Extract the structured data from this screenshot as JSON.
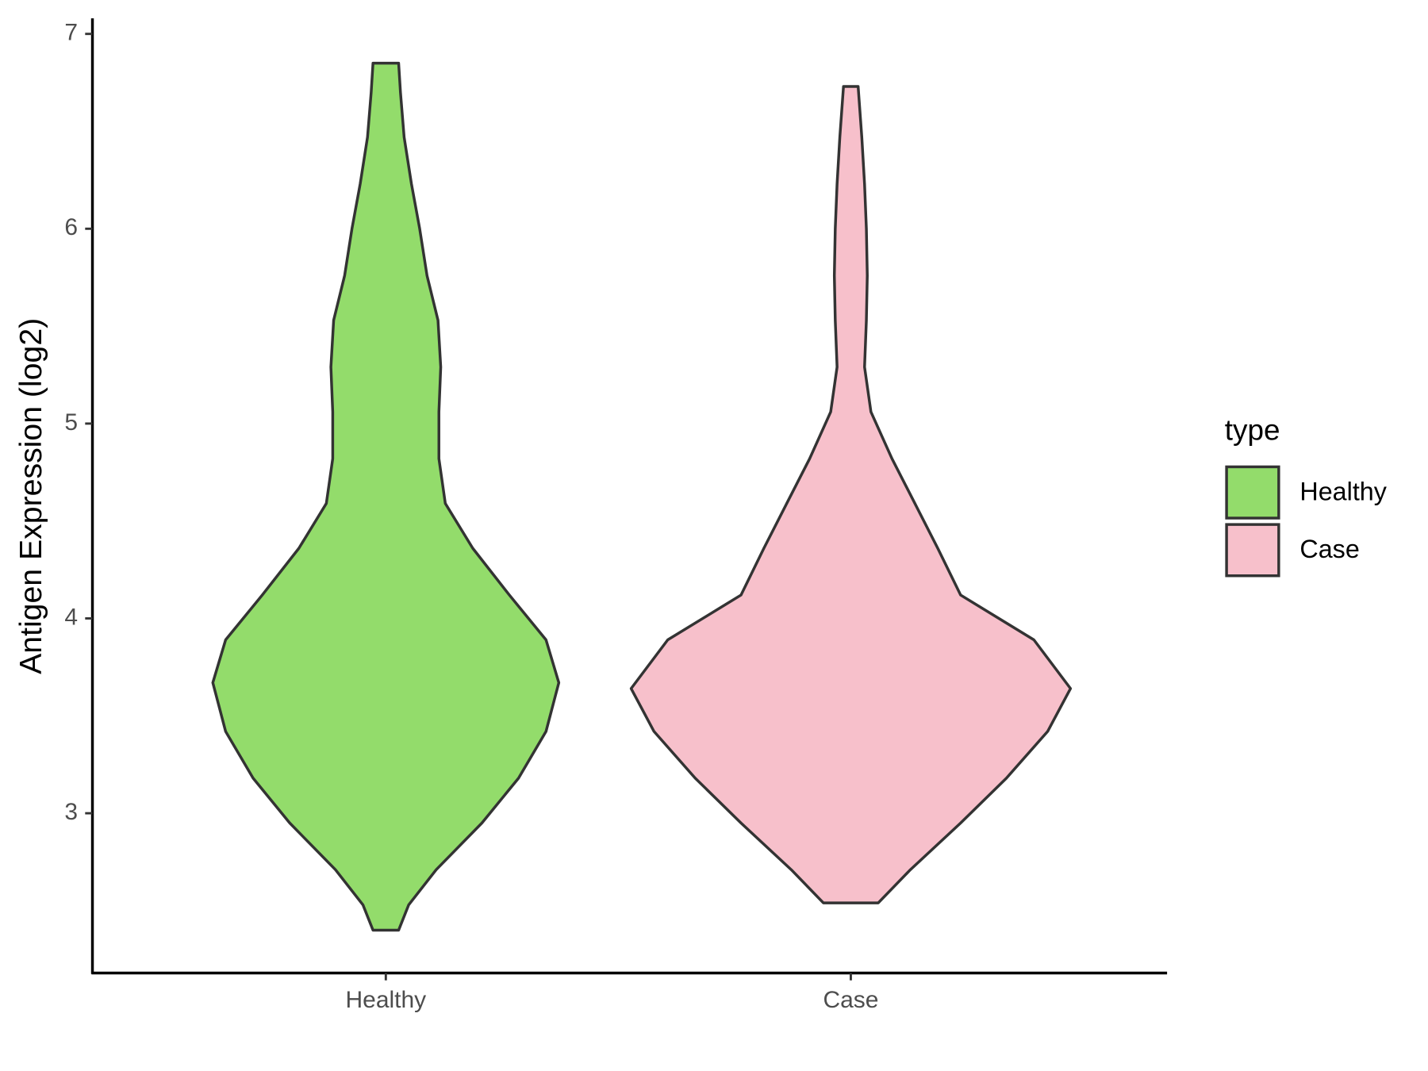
{
  "chart_data": {
    "type": "violin",
    "ylabel": "Antigen Expression (log2)",
    "categories": [
      "Healthy",
      "Case"
    ],
    "ylim": [
      2.18,
      7.08
    ],
    "yticks": [
      3,
      4,
      5,
      6,
      7
    ],
    "legend_title": "type",
    "legend": "right",
    "series": [
      {
        "name": "Healthy",
        "color": "#93dc6b",
        "y": [
          2.4,
          2.53,
          2.71,
          2.95,
          3.18,
          3.42,
          3.67,
          3.89,
          4.12,
          4.36,
          4.59,
          4.82,
          5.06,
          5.29,
          5.53,
          5.76,
          6.0,
          6.23,
          6.47,
          6.7,
          6.85
        ],
        "width": [
          14,
          25,
          55,
          105,
          145,
          175,
          189,
          175,
          135,
          95,
          65,
          58,
          58,
          60,
          57,
          45,
          37,
          28,
          20,
          16,
          14
        ]
      },
      {
        "name": "Case",
        "color": "#f7c0cb",
        "y": [
          2.54,
          2.71,
          2.95,
          3.18,
          3.42,
          3.64,
          3.89,
          4.12,
          4.36,
          4.59,
          4.82,
          5.06,
          5.29,
          5.53,
          5.76,
          6.0,
          6.23,
          6.47,
          6.73
        ],
        "width": [
          30,
          65,
          120,
          170,
          215,
          240,
          200,
          120,
          95,
          70,
          45,
          22,
          15,
          17,
          18,
          17,
          15,
          12,
          8
        ]
      }
    ]
  }
}
